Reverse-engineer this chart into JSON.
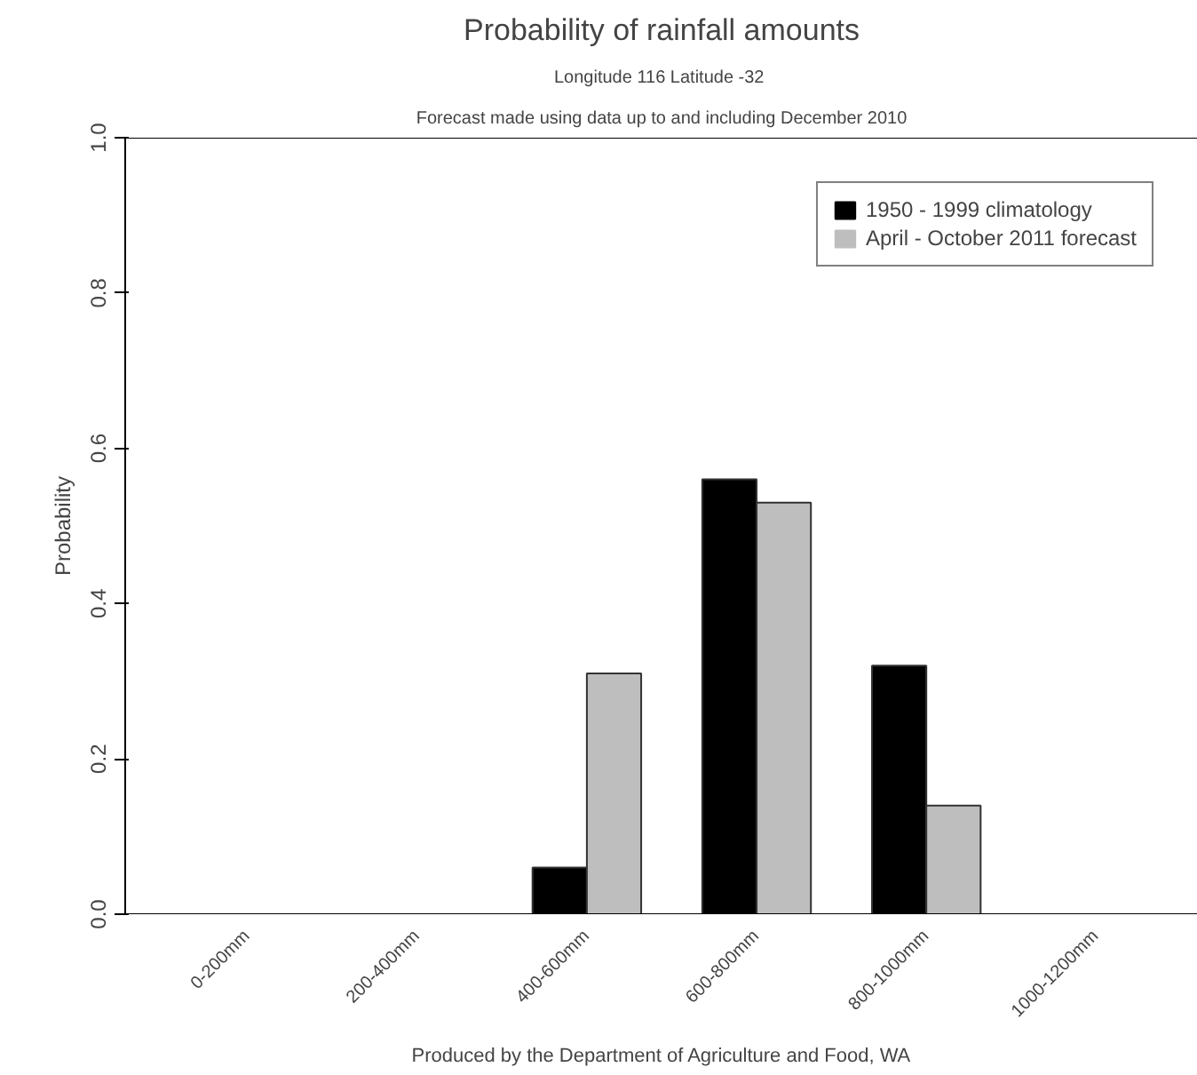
{
  "chart_data": {
    "type": "bar",
    "title": "Probability of rainfall amounts",
    "subtitle": "Longitude 116 Latitude  -32",
    "ylabel": "Probability",
    "categories": [
      "0-200mm",
      "200-400mm",
      "400-600mm",
      "600-800mm",
      "800-1000mm",
      "1000-1200mm"
    ],
    "series": [
      {
        "name": "1950 - 1999 climatology",
        "color": "#000000",
        "values": [
          0,
          0,
          0.06,
          0.56,
          0.32,
          0
        ]
      },
      {
        "name": "April - October 2011 forecast",
        "color": "#bebebe",
        "values": [
          0,
          0,
          0.31,
          0.53,
          0.14,
          0
        ]
      }
    ],
    "ylim": [
      0,
      1.0
    ],
    "yticks": [
      {
        "value": 0,
        "label": "0.0"
      },
      {
        "value": 0.2,
        "label": "0.2"
      },
      {
        "value": 0.4,
        "label": "0.4"
      },
      {
        "value": 0.6,
        "label": "0.6"
      },
      {
        "value": 0.8,
        "label": "0.8"
      },
      {
        "value": 1.0,
        "label": "1.0"
      }
    ],
    "grid": false,
    "legend": "top right",
    "annotations": [
      "Forecast made using data up to and including December 2010",
      "Produced by the Department of Agriculture and Food, WA"
    ]
  }
}
